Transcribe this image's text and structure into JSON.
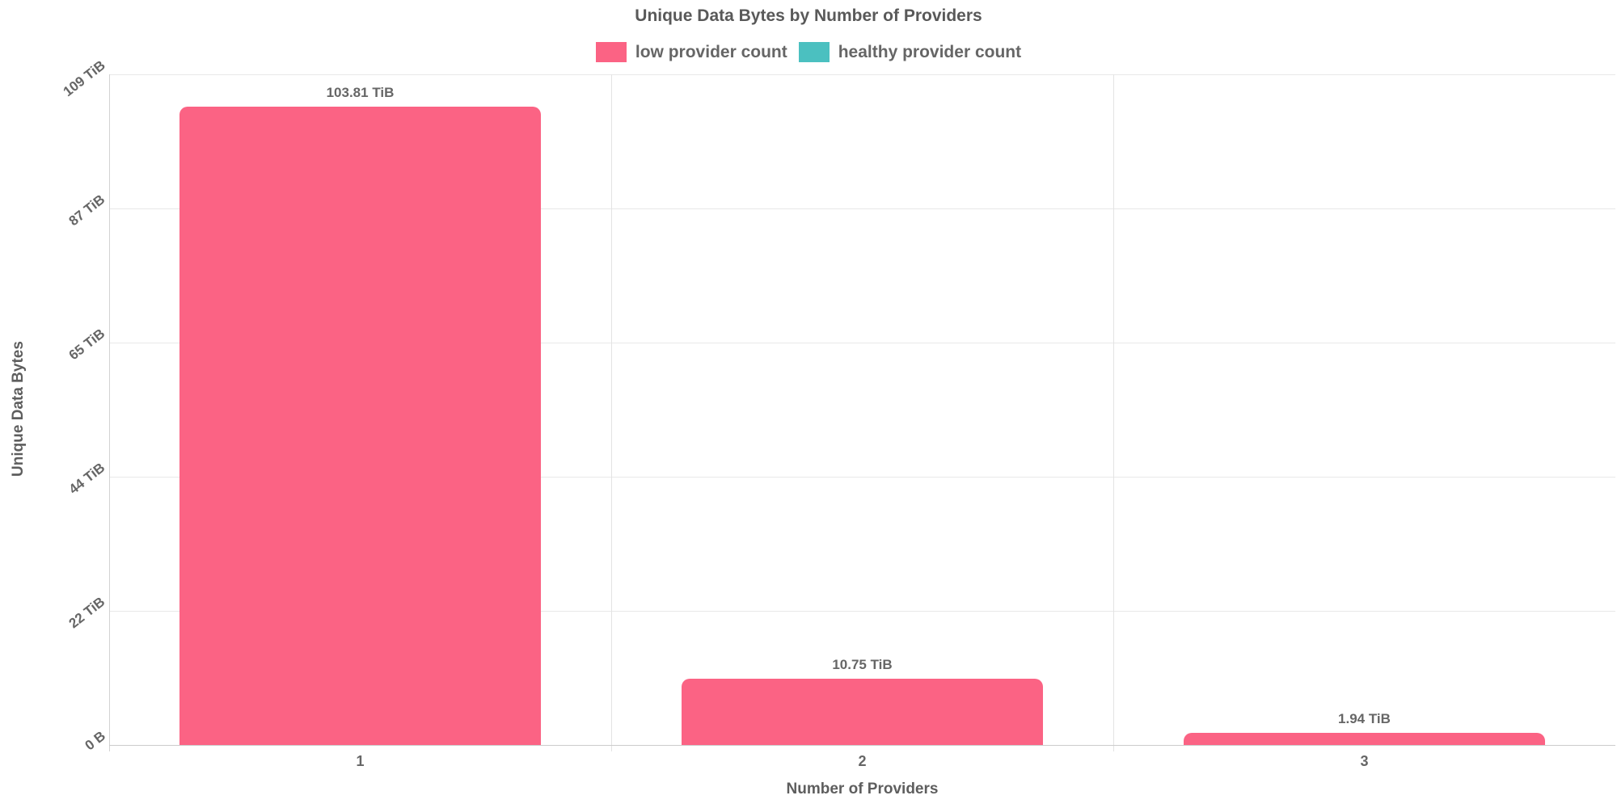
{
  "chart_data": {
    "type": "bar",
    "title": "Unique Data Bytes by Number of Providers",
    "xlabel": "Number of Providers",
    "ylabel": "Unique Data Bytes",
    "categories": [
      "1",
      "2",
      "3"
    ],
    "series": [
      {
        "name": "low provider count",
        "color": "#FB6384",
        "values": [
          103.81,
          10.75,
          1.94
        ],
        "value_labels": [
          "103.81 TiB",
          "10.75 TiB",
          "1.94 TiB"
        ]
      },
      {
        "name": "healthy provider count",
        "color": "#4BC0C0",
        "values": [
          0,
          0,
          0
        ],
        "value_labels": []
      }
    ],
    "y_ticks": [
      "0 B",
      "22 TiB",
      "44 TiB",
      "65 TiB",
      "87 TiB",
      "109 TiB"
    ],
    "y_tick_values": [
      0,
      22,
      44,
      65,
      87,
      109
    ],
    "ylim": [
      0,
      109
    ],
    "grid": true,
    "legend_position": "top",
    "colors": {
      "text": "#666666",
      "gridline": "#e8e8e8",
      "axis_line": "#cccccc",
      "background": "#ffffff"
    }
  }
}
